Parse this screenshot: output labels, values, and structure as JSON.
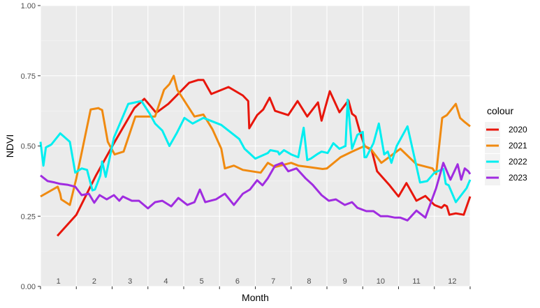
{
  "chart_data": {
    "type": "line",
    "xlabel": "Month",
    "ylabel": "NDVI",
    "ylim": [
      0,
      1
    ],
    "xlim": [
      0,
      12
    ],
    "y_ticks": [
      "0.00",
      "0.25",
      "0.50",
      "0.75",
      "1.00"
    ],
    "x_tick_labels": [
      "1",
      "2",
      "3",
      "4",
      "5",
      "6",
      "7",
      "8",
      "9",
      "10",
      "11",
      "12"
    ],
    "grid": true,
    "legend": {
      "title": "colour",
      "position": "right"
    },
    "series": [
      {
        "name": "2020",
        "color": "#e8160c",
        "x": [
          0.47,
          1.0,
          1.55,
          2.05,
          2.62,
          2.9,
          3.23,
          3.57,
          3.88,
          4.15,
          4.4,
          4.55,
          4.77,
          5.25,
          5.65,
          5.8,
          5.83,
          6.05,
          6.22,
          6.4,
          6.55,
          6.92,
          7.18,
          7.45,
          7.75,
          7.85,
          8.08,
          8.35,
          8.6,
          8.7,
          8.8,
          8.9,
          9.05,
          9.25,
          9.4,
          9.75,
          10.0,
          10.22,
          10.5,
          10.75,
          11.0,
          11.2,
          11.28,
          11.35,
          11.42,
          11.6,
          11.82,
          12.0
        ],
        "y": [
          0.18,
          0.255,
          0.395,
          0.51,
          0.635,
          0.668,
          0.618,
          0.65,
          0.69,
          0.725,
          0.735,
          0.735,
          0.685,
          0.71,
          0.68,
          0.66,
          0.563,
          0.61,
          0.63,
          0.672,
          0.625,
          0.61,
          0.66,
          0.605,
          0.655,
          0.59,
          0.695,
          0.62,
          0.662,
          0.615,
          0.605,
          0.56,
          0.5,
          0.485,
          0.41,
          0.36,
          0.32,
          0.368,
          0.305,
          0.322,
          0.29,
          0.28,
          0.29,
          0.285,
          0.255,
          0.26,
          0.255,
          0.32
        ]
      },
      {
        "name": "2021",
        "color": "#f08a10",
        "x": [
          0.0,
          0.48,
          0.55,
          0.58,
          0.82,
          1.0,
          1.4,
          1.62,
          1.65,
          1.72,
          1.88,
          2.07,
          2.32,
          2.65,
          3.2,
          3.45,
          3.6,
          3.72,
          3.82,
          4.3,
          4.55,
          4.8,
          5.05,
          5.15,
          5.4,
          5.65,
          6.15,
          6.35,
          6.55,
          7.0,
          7.2,
          7.5,
          7.88,
          8.0,
          8.38,
          8.7,
          9.05,
          9.22,
          9.52,
          10.05,
          10.5,
          10.95,
          11.05,
          11.22,
          11.35,
          11.6,
          11.72,
          11.85,
          12.0
        ],
        "y": [
          0.32,
          0.355,
          0.33,
          0.31,
          0.29,
          0.385,
          0.63,
          0.635,
          0.632,
          0.628,
          0.515,
          0.47,
          0.48,
          0.605,
          0.605,
          0.7,
          0.72,
          0.75,
          0.7,
          0.605,
          0.612,
          0.56,
          0.49,
          0.42,
          0.43,
          0.415,
          0.405,
          0.44,
          0.425,
          0.44,
          0.43,
          0.425,
          0.418,
          0.42,
          0.46,
          0.48,
          0.5,
          0.49,
          0.44,
          0.49,
          0.435,
          0.42,
          0.4,
          0.6,
          0.61,
          0.65,
          0.6,
          0.585,
          0.57
        ]
      },
      {
        "name": "2022",
        "color": "#00eef0",
        "x": [
          0.0,
          0.08,
          0.15,
          0.3,
          0.55,
          0.82,
          0.97,
          1.15,
          1.3,
          1.45,
          1.52,
          1.67,
          1.72,
          1.82,
          2.05,
          2.2,
          2.45,
          2.82,
          3.05,
          3.2,
          3.4,
          3.6,
          3.8,
          4.02,
          4.25,
          4.4,
          4.55,
          5.05,
          5.55,
          5.7,
          6.0,
          6.35,
          6.42,
          6.63,
          6.67,
          6.8,
          7.0,
          7.2,
          7.35,
          7.45,
          7.55,
          7.72,
          7.85,
          8.02,
          8.18,
          8.35,
          8.52,
          8.58,
          8.7,
          8.85,
          9.0,
          9.05,
          9.1,
          9.3,
          9.45,
          9.6,
          9.7,
          9.8,
          9.95,
          10.25,
          10.6,
          10.8,
          11.0,
          11.25,
          11.32,
          11.4,
          11.6,
          11.9,
          12.0
        ],
        "y": [
          0.515,
          0.43,
          0.495,
          0.505,
          0.545,
          0.515,
          0.405,
          0.42,
          0.415,
          0.342,
          0.345,
          0.395,
          0.445,
          0.39,
          0.53,
          0.575,
          0.65,
          0.66,
          0.615,
          0.58,
          0.555,
          0.5,
          0.545,
          0.6,
          0.58,
          0.59,
          0.6,
          0.575,
          0.525,
          0.49,
          0.455,
          0.475,
          0.485,
          0.48,
          0.47,
          0.485,
          0.47,
          0.46,
          0.565,
          0.45,
          0.455,
          0.47,
          0.48,
          0.475,
          0.51,
          0.49,
          0.5,
          0.665,
          0.49,
          0.54,
          0.55,
          0.46,
          0.46,
          0.51,
          0.58,
          0.47,
          0.48,
          0.44,
          0.5,
          0.57,
          0.37,
          0.375,
          0.405,
          0.418,
          0.365,
          0.36,
          0.3,
          0.35,
          0.38
        ]
      },
      {
        "name": "2023",
        "color": "#a02ce0",
        "x": [
          0.0,
          0.2,
          0.4,
          0.55,
          0.75,
          0.97,
          1.15,
          1.35,
          1.5,
          1.65,
          1.85,
          2.05,
          2.2,
          2.3,
          2.55,
          2.75,
          3.0,
          3.2,
          3.4,
          3.65,
          3.85,
          4.1,
          4.3,
          4.45,
          4.6,
          4.75,
          4.9,
          5.15,
          5.4,
          5.65,
          5.85,
          6.05,
          6.2,
          6.35,
          6.55,
          6.75,
          6.92,
          7.15,
          7.4,
          7.6,
          7.85,
          8.05,
          8.25,
          8.5,
          8.7,
          8.85,
          9.1,
          9.3,
          9.5,
          9.7,
          9.9,
          10.05,
          10.25,
          10.5,
          10.75,
          11.05,
          11.25,
          11.45,
          11.65,
          11.75,
          11.85,
          11.95,
          12.0
        ],
        "y": [
          0.395,
          0.375,
          0.37,
          0.365,
          0.362,
          0.355,
          0.325,
          0.33,
          0.298,
          0.325,
          0.31,
          0.325,
          0.305,
          0.32,
          0.305,
          0.305,
          0.278,
          0.3,
          0.305,
          0.285,
          0.315,
          0.29,
          0.3,
          0.345,
          0.3,
          0.305,
          0.31,
          0.33,
          0.29,
          0.33,
          0.345,
          0.378,
          0.36,
          0.385,
          0.43,
          0.44,
          0.41,
          0.42,
          0.385,
          0.362,
          0.325,
          0.305,
          0.31,
          0.29,
          0.3,
          0.28,
          0.268,
          0.268,
          0.25,
          0.25,
          0.245,
          0.245,
          0.235,
          0.27,
          0.245,
          0.35,
          0.44,
          0.38,
          0.435,
          0.38,
          0.42,
          0.41,
          0.4
        ]
      }
    ]
  }
}
